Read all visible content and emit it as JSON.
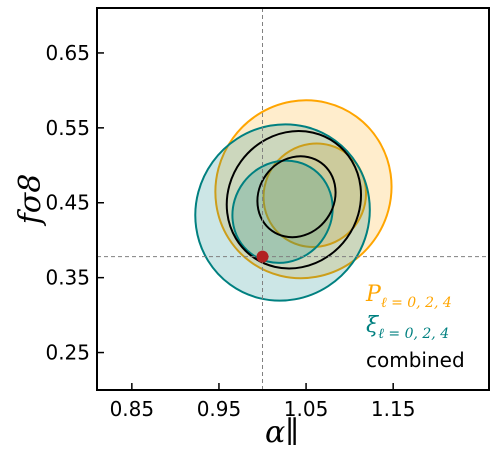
{
  "chart_data": {
    "type": "scatter",
    "title": "",
    "xlabel": "α∥",
    "ylabel": "fσ8",
    "xlim": [
      0.81,
      1.26
    ],
    "ylim": [
      0.2,
      0.71
    ],
    "xticks": [
      0.85,
      0.95,
      1.05,
      1.15
    ],
    "yticks": [
      0.25,
      0.35,
      0.45,
      0.55,
      0.65
    ],
    "xtick_labels": [
      "0.85",
      "0.95",
      "1.05",
      "1.15"
    ],
    "ytick_labels": [
      "0.25",
      "0.35",
      "0.45",
      "0.55",
      "0.65"
    ],
    "reference_lines": {
      "x": 1.0,
      "y": 0.378
    },
    "fiducial_point": {
      "x": 1.0,
      "y": 0.378,
      "color": "#b22222"
    },
    "legend_position": "bottom-right",
    "series": [
      {
        "name": "P_{ℓ=0,2,4}",
        "color": "#ffa500",
        "fill": "#ffa500",
        "contours": [
          {
            "level": "2-sigma",
            "cx": 1.047,
            "cy": 0.468,
            "rx": 0.1,
            "ry": 0.12,
            "rotation_deg": 36
          },
          {
            "level": "1-sigma",
            "cx": 1.06,
            "cy": 0.46,
            "rx": 0.058,
            "ry": 0.07,
            "rotation_deg": 38
          }
        ]
      },
      {
        "name": "ξ_{ℓ=0,2,4}",
        "color": "#008080",
        "fill": "#008080",
        "contours": [
          {
            "level": "2-sigma",
            "cx": 1.023,
            "cy": 0.437,
            "rx": 0.099,
            "ry": 0.119,
            "rotation_deg": 36
          },
          {
            "level": "1-sigma",
            "cx": 1.023,
            "cy": 0.438,
            "rx": 0.056,
            "ry": 0.07,
            "rotation_deg": 37
          }
        ]
      },
      {
        "name": "combined",
        "color": "#000000",
        "fill": "none",
        "contours": [
          {
            "level": "2-sigma",
            "cx": 1.036,
            "cy": 0.454,
            "rx": 0.075,
            "ry": 0.094,
            "rotation_deg": 36
          },
          {
            "level": "1-sigma",
            "cx": 1.039,
            "cy": 0.458,
            "rx": 0.043,
            "ry": 0.056,
            "rotation_deg": 36
          }
        ]
      }
    ],
    "legend": [
      {
        "label_main": "P",
        "label_sub": "ℓ = 0, 2, 4",
        "color": "#ffa500"
      },
      {
        "label_main": "ξ",
        "label_sub": "ℓ = 0, 2, 4",
        "color": "#008080"
      },
      {
        "label_main": "combined",
        "label_sub": "",
        "color": "#000000"
      }
    ],
    "grid": false
  }
}
